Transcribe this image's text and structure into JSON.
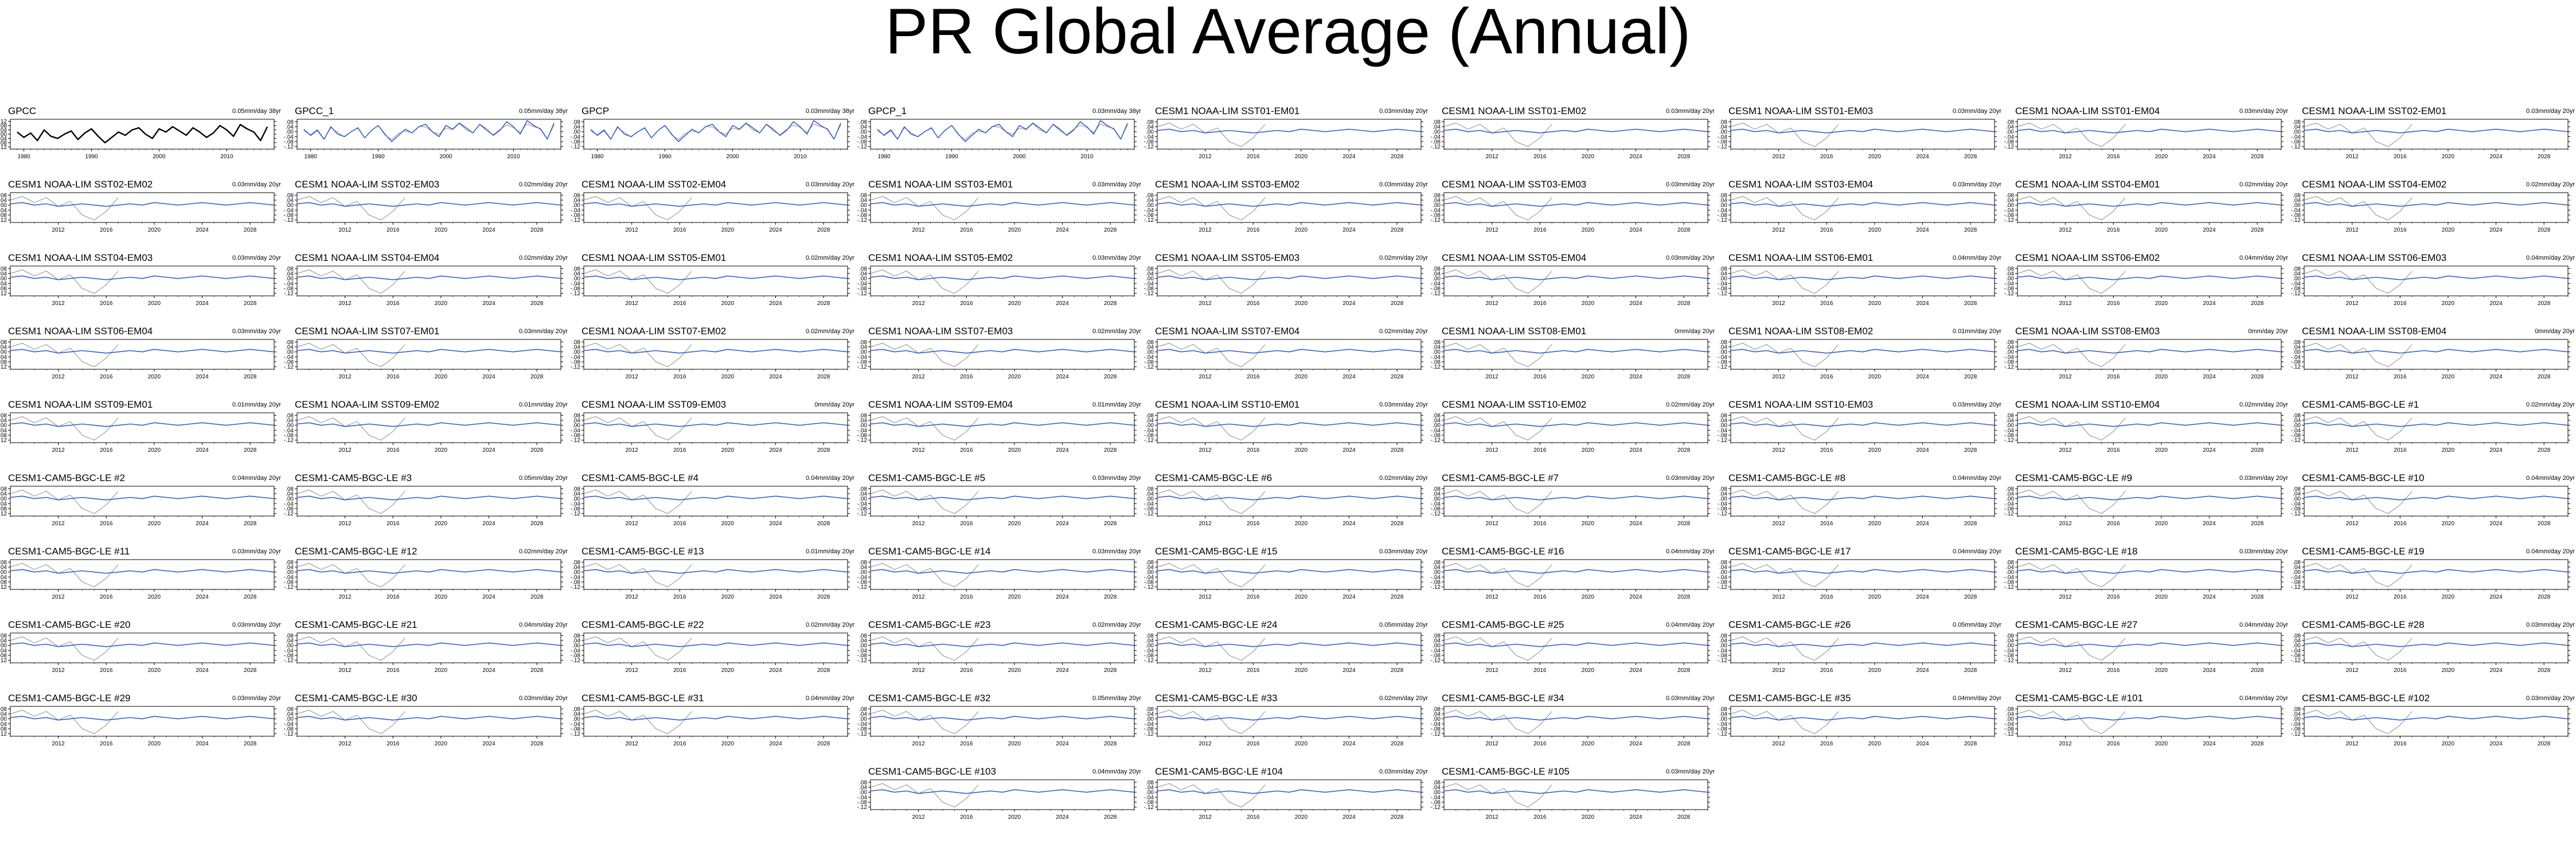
{
  "title": "PR Global Average (Annual)",
  "chart_data": {
    "type": "line",
    "title": "PR Global Average (Annual)",
    "colors": {
      "observed": "#000000",
      "model": "#3a5fcd",
      "grey": "#8c8c8c"
    },
    "panels": [
      {
        "name": "GPCC",
        "trend": "0.05mm/day 38yr",
        "kind": "obs",
        "xlim": [
          1978,
          2017
        ],
        "xticks": [
          1980,
          1990,
          2000,
          2010
        ],
        "yticks": [
          0.12,
          0.08,
          0.04,
          0.0,
          -0.04,
          -0.08,
          -0.12
        ],
        "ylim": [
          -0.14,
          0.14
        ]
      },
      {
        "name": "GPCC_1",
        "trend": "0.05mm/day 38yr",
        "kind": "obs",
        "xlim": [
          1978,
          2017
        ],
        "xticks": [
          1980,
          1990,
          2000,
          2010
        ],
        "yticks": [
          0.08,
          0.04,
          0.0,
          -0.04,
          -0.08,
          -0.12
        ],
        "ylim": [
          -0.14,
          0.1
        ]
      },
      {
        "name": "GPCP",
        "trend": "0.03mm/day 38yr",
        "kind": "obs",
        "xlim": [
          1978,
          2017
        ],
        "xticks": [
          1980,
          1990,
          2000,
          2010
        ],
        "yticks": [
          0.08,
          0.04,
          0.0,
          -0.04,
          -0.08,
          -0.12
        ],
        "ylim": [
          -0.14,
          0.1
        ]
      },
      {
        "name": "GPCP_1",
        "trend": "0.03mm/day 38yr",
        "kind": "obs",
        "xlim": [
          1978,
          2017
        ],
        "xticks": [
          1980,
          1990,
          2000,
          2010
        ],
        "yticks": [
          0.08,
          0.04,
          0.0,
          -0.04,
          -0.08,
          -0.12
        ],
        "ylim": [
          -0.14,
          0.1
        ]
      },
      {
        "name": "CESM1 NOAA-LIM SST01-EM01",
        "trend": "0.03mm/day 20yr"
      },
      {
        "name": "CESM1 NOAA-LIM SST01-EM02",
        "trend": "0.03mm/day 20yr"
      },
      {
        "name": "CESM1 NOAA-LIM SST01-EM03",
        "trend": "0.03mm/day 20yr"
      },
      {
        "name": "CESM1 NOAA-LIM SST01-EM04",
        "trend": "0.03mm/day 20yr"
      },
      {
        "name": "CESM1 NOAA-LIM SST02-EM01",
        "trend": "0.03mm/day 20yr"
      },
      {
        "name": "CESM1 NOAA-LIM SST02-EM02",
        "trend": "0.03mm/day 20yr"
      },
      {
        "name": "CESM1 NOAA-LIM SST02-EM03",
        "trend": "0.02mm/day 20yr"
      },
      {
        "name": "CESM1 NOAA-LIM SST02-EM04",
        "trend": "0.03mm/day 20yr"
      },
      {
        "name": "CESM1 NOAA-LIM SST03-EM01",
        "trend": "0.03mm/day 20yr"
      },
      {
        "name": "CESM1 NOAA-LIM SST03-EM02",
        "trend": "0.03mm/day 20yr"
      },
      {
        "name": "CESM1 NOAA-LIM SST03-EM03",
        "trend": "0.03mm/day 20yr"
      },
      {
        "name": "CESM1 NOAA-LIM SST03-EM04",
        "trend": "0.03mm/day 20yr"
      },
      {
        "name": "CESM1 NOAA-LIM SST04-EM01",
        "trend": "0.02mm/day 20yr"
      },
      {
        "name": "CESM1 NOAA-LIM SST04-EM02",
        "trend": "0.02mm/day 20yr"
      },
      {
        "name": "CESM1 NOAA-LIM SST04-EM03",
        "trend": "0.03mm/day 20yr"
      },
      {
        "name": "CESM1 NOAA-LIM SST04-EM04",
        "trend": "0.02mm/day 20yr"
      },
      {
        "name": "CESM1 NOAA-LIM SST05-EM01",
        "trend": "0.02mm/day 20yr"
      },
      {
        "name": "CESM1 NOAA-LIM SST05-EM02",
        "trend": "0.03mm/day 20yr"
      },
      {
        "name": "CESM1 NOAA-LIM SST05-EM03",
        "trend": "0.02mm/day 20yr"
      },
      {
        "name": "CESM1 NOAA-LIM SST05-EM04",
        "trend": "0.03mm/day 20yr"
      },
      {
        "name": "CESM1 NOAA-LIM SST06-EM01",
        "trend": "0.04mm/day 20yr"
      },
      {
        "name": "CESM1 NOAA-LIM SST06-EM02",
        "trend": "0.04mm/day 20yr"
      },
      {
        "name": "CESM1 NOAA-LIM SST06-EM03",
        "trend": "0.04mm/day 20yr"
      },
      {
        "name": "CESM1 NOAA-LIM SST06-EM04",
        "trend": "0.03mm/day 20yr"
      },
      {
        "name": "CESM1 NOAA-LIM SST07-EM01",
        "trend": "0.03mm/day 20yr"
      },
      {
        "name": "CESM1 NOAA-LIM SST07-EM02",
        "trend": "0.02mm/day 20yr"
      },
      {
        "name": "CESM1 NOAA-LIM SST07-EM03",
        "trend": "0.02mm/day 20yr"
      },
      {
        "name": "CESM1 NOAA-LIM SST07-EM04",
        "trend": "0.02mm/day 20yr"
      },
      {
        "name": "CESM1 NOAA-LIM SST08-EM01",
        "trend": "0mm/day 20yr"
      },
      {
        "name": "CESM1 NOAA-LIM SST08-EM02",
        "trend": "0.01mm/day 20yr"
      },
      {
        "name": "CESM1 NOAA-LIM SST08-EM03",
        "trend": "0mm/day 20yr"
      },
      {
        "name": "CESM1 NOAA-LIM SST08-EM04",
        "trend": "0mm/day 20yr"
      },
      {
        "name": "CESM1 NOAA-LIM SST09-EM01",
        "trend": "0.01mm/day 20yr"
      },
      {
        "name": "CESM1 NOAA-LIM SST09-EM02",
        "trend": "0.01mm/day 20yr"
      },
      {
        "name": "CESM1 NOAA-LIM SST09-EM03",
        "trend": "0mm/day 20yr"
      },
      {
        "name": "CESM1 NOAA-LIM SST09-EM04",
        "trend": "0.01mm/day 20yr"
      },
      {
        "name": "CESM1 NOAA-LIM SST10-EM01",
        "trend": "0.03mm/day 20yr"
      },
      {
        "name": "CESM1 NOAA-LIM SST10-EM02",
        "trend": "0.02mm/day 20yr"
      },
      {
        "name": "CESM1 NOAA-LIM SST10-EM03",
        "trend": "0.03mm/day 20yr"
      },
      {
        "name": "CESM1 NOAA-LIM SST10-EM04",
        "trend": "0.02mm/day 20yr"
      },
      {
        "name": "CESM1-CAM5-BGC-LE #1",
        "trend": "0.02mm/day 20yr"
      },
      {
        "name": "CESM1-CAM5-BGC-LE #2",
        "trend": "0.04mm/day 20yr"
      },
      {
        "name": "CESM1-CAM5-BGC-LE #3",
        "trend": "0.05mm/day 20yr"
      },
      {
        "name": "CESM1-CAM5-BGC-LE #4",
        "trend": "0.04mm/day 20yr"
      },
      {
        "name": "CESM1-CAM5-BGC-LE #5",
        "trend": "0.03mm/day 20yr"
      },
      {
        "name": "CESM1-CAM5-BGC-LE #6",
        "trend": "0.02mm/day 20yr"
      },
      {
        "name": "CESM1-CAM5-BGC-LE #7",
        "trend": "0.03mm/day 20yr"
      },
      {
        "name": "CESM1-CAM5-BGC-LE #8",
        "trend": "0.04mm/day 20yr"
      },
      {
        "name": "CESM1-CAM5-BGC-LE #9",
        "trend": "0.03mm/day 20yr"
      },
      {
        "name": "CESM1-CAM5-BGC-LE #10",
        "trend": "0.04mm/day 20yr"
      },
      {
        "name": "CESM1-CAM5-BGC-LE #11",
        "trend": "0.03mm/day 20yr"
      },
      {
        "name": "CESM1-CAM5-BGC-LE #12",
        "trend": "0.02mm/day 20yr"
      },
      {
        "name": "CESM1-CAM5-BGC-LE #13",
        "trend": "0.01mm/day 20yr"
      },
      {
        "name": "CESM1-CAM5-BGC-LE #14",
        "trend": "0.03mm/day 20yr"
      },
      {
        "name": "CESM1-CAM5-BGC-LE #15",
        "trend": "0.03mm/day 20yr"
      },
      {
        "name": "CESM1-CAM5-BGC-LE #16",
        "trend": "0.04mm/day 20yr"
      },
      {
        "name": "CESM1-CAM5-BGC-LE #17",
        "trend": "0.04mm/day 20yr"
      },
      {
        "name": "CESM1-CAM5-BGC-LE #18",
        "trend": "0.03mm/day 20yr"
      },
      {
        "name": "CESM1-CAM5-BGC-LE #19",
        "trend": "0.04mm/day 20yr"
      },
      {
        "name": "CESM1-CAM5-BGC-LE #20",
        "trend": "0.03mm/day 20yr"
      },
      {
        "name": "CESM1-CAM5-BGC-LE #21",
        "trend": "0.04mm/day 20yr"
      },
      {
        "name": "CESM1-CAM5-BGC-LE #22",
        "trend": "0.02mm/day 20yr"
      },
      {
        "name": "CESM1-CAM5-BGC-LE #23",
        "trend": "0.02mm/day 20yr"
      },
      {
        "name": "CESM1-CAM5-BGC-LE #24",
        "trend": "0.05mm/day 20yr"
      },
      {
        "name": "CESM1-CAM5-BGC-LE #25",
        "trend": "0.04mm/day 20yr"
      },
      {
        "name": "CESM1-CAM5-BGC-LE #26",
        "trend": "0.05mm/day 20yr"
      },
      {
        "name": "CESM1-CAM5-BGC-LE #27",
        "trend": "0.04mm/day 20yr"
      },
      {
        "name": "CESM1-CAM5-BGC-LE #28",
        "trend": "0.03mm/day 20yr"
      },
      {
        "name": "CESM1-CAM5-BGC-LE #29",
        "trend": "0.03mm/day 20yr"
      },
      {
        "name": "CESM1-CAM5-BGC-LE #30",
        "trend": "0.03mm/day 20yr"
      },
      {
        "name": "CESM1-CAM5-BGC-LE #31",
        "trend": "0.04mm/day 20yr"
      },
      {
        "name": "CESM1-CAM5-BGC-LE #32",
        "trend": "0.05mm/day 20yr"
      },
      {
        "name": "CESM1-CAM5-BGC-LE #33",
        "trend": "0.02mm/day 20yr"
      },
      {
        "name": "CESM1-CAM5-BGC-LE #34",
        "trend": "0.03mm/day 20yr"
      },
      {
        "name": "CESM1-CAM5-BGC-LE #35",
        "trend": "0.04mm/day 20yr"
      },
      {
        "name": "CESM1-CAM5-BGC-LE #101",
        "trend": "0.04mm/day 20yr"
      },
      {
        "name": "CESM1-CAM5-BGC-LE #102",
        "trend": "0.03mm/day 20yr"
      },
      {
        "name": "CESM1-CAM5-BGC-LE #103",
        "trend": "0.04mm/day 20yr"
      },
      {
        "name": "CESM1-CAM5-BGC-LE #104",
        "trend": "0.03mm/day 20yr"
      },
      {
        "name": "CESM1-CAM5-BGC-LE #105",
        "trend": "0.03mm/day 20yr"
      }
    ],
    "model_axes": {
      "xlim": [
        2008,
        2030
      ],
      "xticks": [
        2012,
        2016,
        2020,
        2024,
        2028
      ],
      "yticks": [
        0.08,
        0.04,
        0.0,
        -0.04,
        -0.08,
        -0.12
      ],
      "ylim": [
        -0.14,
        0.1
      ]
    },
    "observed_series": {
      "x": [
        1979,
        1980,
        1981,
        1982,
        1983,
        1984,
        1985,
        1986,
        1987,
        1988,
        1989,
        1990,
        1991,
        1992,
        1993,
        1994,
        1995,
        1996,
        1997,
        1998,
        1999,
        2000,
        2001,
        2002,
        2003,
        2004,
        2005,
        2006,
        2007,
        2008,
        2009,
        2010,
        2011,
        2012,
        2013,
        2014,
        2015,
        2016
      ],
      "y": [
        0.02,
        -0.03,
        0.01,
        -0.06,
        0.04,
        -0.02,
        -0.04,
        0.0,
        0.03,
        -0.05,
        0.01,
        0.05,
        -0.02,
        -0.08,
        -0.03,
        0.02,
        -0.01,
        0.04,
        0.06,
        0.0,
        -0.04,
        0.05,
        0.02,
        0.07,
        0.03,
        -0.01,
        0.06,
        0.02,
        -0.03,
        0.01,
        0.08,
        0.04,
        -0.02,
        0.09,
        0.05,
        0.02,
        -0.06,
        0.07
      ]
    },
    "grey_series": {
      "x": [
        2008,
        2009,
        2010,
        2011,
        2012,
        2013,
        2014,
        2015,
        2016,
        2017
      ],
      "y": [
        0.04,
        0.07,
        0.02,
        0.06,
        -0.01,
        0.03,
        -0.08,
        -0.12,
        -0.05,
        0.06
      ]
    },
    "model_series": {
      "x": [
        2008,
        2009,
        2010,
        2011,
        2012,
        2013,
        2014,
        2015,
        2016,
        2017,
        2018,
        2019,
        2020,
        2021,
        2022,
        2023,
        2024,
        2025,
        2026,
        2027,
        2028,
        2029,
        2030
      ],
      "y": [
        0.01,
        0.02,
        0.0,
        0.01,
        -0.01,
        0.0,
        0.01,
        0.0,
        -0.01,
        0.0,
        0.01,
        0.0,
        0.02,
        0.01,
        0.0,
        0.01,
        0.02,
        0.01,
        0.0,
        0.01,
        0.02,
        0.01,
        0.0
      ]
    }
  }
}
